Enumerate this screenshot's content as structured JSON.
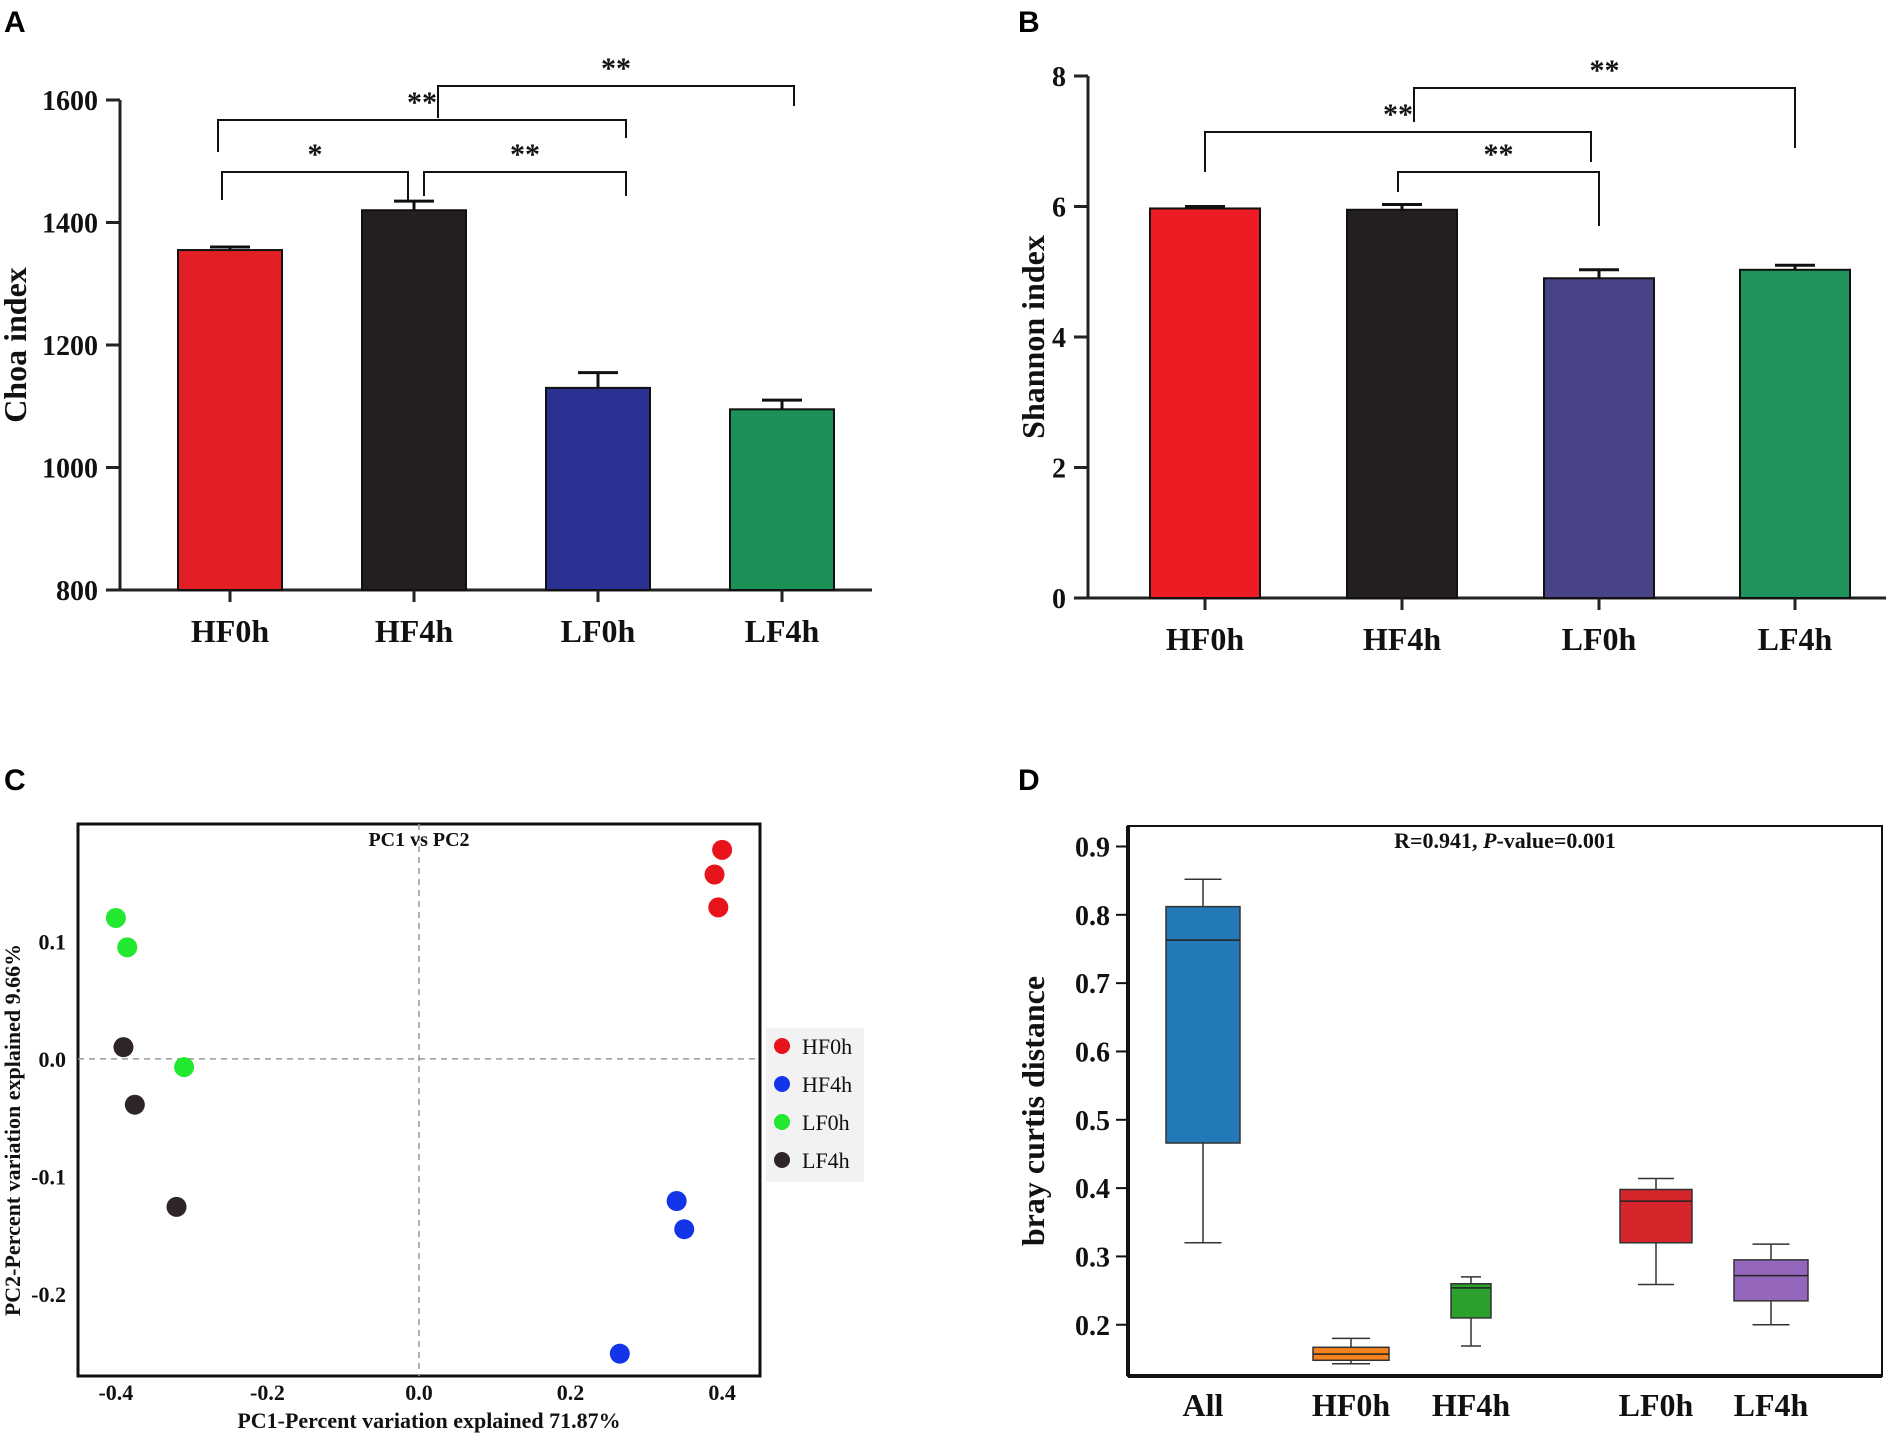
{
  "chart_data": [
    {
      "panel": "A",
      "type": "bar",
      "ylabel": "Choa index",
      "categories": [
        "HF0h",
        "HF4h",
        "LF0h",
        "LF4h"
      ],
      "values": [
        1355,
        1420,
        1130,
        1095
      ],
      "errors": [
        5,
        15,
        25,
        15
      ],
      "colors": [
        "#e31e24",
        "#231f20",
        "#2b3192",
        "#1b9158"
      ],
      "ylim": [
        800,
        1600
      ],
      "yticks": [
        800,
        1000,
        1200,
        1400,
        1600
      ],
      "significance": [
        {
          "from": 0,
          "to": 1,
          "label": "*"
        },
        {
          "from": 1,
          "to": 2,
          "label": "**"
        },
        {
          "from": 0,
          "to": 2,
          "label": "**"
        },
        {
          "from": 1,
          "to": 3,
          "label": "**"
        }
      ]
    },
    {
      "panel": "B",
      "type": "bar",
      "ylabel": "Shannon index",
      "categories": [
        "HF0h",
        "HF4h",
        "LF0h",
        "LF4h"
      ],
      "values": [
        5.97,
        5.95,
        4.9,
        5.03
      ],
      "errors": [
        0.03,
        0.08,
        0.13,
        0.07
      ],
      "colors": [
        "#ed1c24",
        "#231f20",
        "#474386",
        "#1f935b"
      ],
      "ylim": [
        0,
        8
      ],
      "yticks": [
        0,
        2,
        4,
        6,
        8
      ],
      "significance": [
        {
          "from": 1,
          "to": 2,
          "label": "**"
        },
        {
          "from": 0,
          "to": 2,
          "label": "**"
        },
        {
          "from": 1,
          "to": 3,
          "label": "**"
        }
      ]
    },
    {
      "panel": "C",
      "type": "scatter",
      "title": "PC1 vs PC2",
      "xlabel": "PC1-Percent variation explained 71.87%",
      "ylabel": "PC2-Percent variation explained 9.66%",
      "xlim": [
        -0.45,
        0.45
      ],
      "ylim": [
        -0.27,
        0.2
      ],
      "xticks": [
        -0.4,
        -0.2,
        0.0,
        0.2,
        0.4
      ],
      "xtick_labels": [
        "-0.4",
        "-0.2",
        "0.0",
        "0.2",
        "0.4"
      ],
      "yticks": [
        -0.2,
        -0.1,
        0.0,
        0.1
      ],
      "ytick_labels": [
        "-0.2",
        "-0.1",
        "0.0",
        "0.1"
      ],
      "series": [
        {
          "name": "HF0h",
          "color": "#e8141c",
          "points": [
            [
              0.4,
              0.178
            ],
            [
              0.39,
              0.157
            ],
            [
              0.395,
              0.129
            ]
          ]
        },
        {
          "name": "HF4h",
          "color": "#1434e8",
          "points": [
            [
              0.34,
              -0.121
            ],
            [
              0.35,
              -0.145
            ],
            [
              0.265,
              -0.251
            ]
          ]
        },
        {
          "name": "LF0h",
          "color": "#22e830",
          "points": [
            [
              -0.4,
              0.12
            ],
            [
              -0.385,
              0.095
            ],
            [
              -0.31,
              -0.007
            ]
          ]
        },
        {
          "name": "LF4h",
          "color": "#2e2526",
          "points": [
            [
              -0.39,
              0.01
            ],
            [
              -0.375,
              -0.039
            ],
            [
              -0.32,
              -0.126
            ]
          ]
        }
      ]
    },
    {
      "panel": "D",
      "type": "box",
      "ylabel": "bray curtis distance",
      "annotation": {
        "prefix": "R=0.941, ",
        "p_label": "P",
        "suffix": "-value=0.001"
      },
      "categories": [
        "All",
        "HF0h",
        "HF4h",
        "LF0h",
        "LF4h"
      ],
      "boxes": [
        {
          "min": 0.32,
          "q1": 0.466,
          "median": 0.763,
          "q3": 0.812,
          "max": 0.852
        },
        {
          "min": 0.143,
          "q1": 0.148,
          "median": 0.157,
          "q3": 0.167,
          "max": 0.18
        },
        {
          "min": 0.169,
          "q1": 0.21,
          "median": 0.254,
          "q3": 0.26,
          "max": 0.27
        },
        {
          "min": 0.259,
          "q1": 0.32,
          "median": 0.381,
          "q3": 0.398,
          "max": 0.414
        },
        {
          "min": 0.2,
          "q1": 0.235,
          "median": 0.272,
          "q3": 0.295,
          "max": 0.318
        }
      ],
      "colors": [
        "#2379b5",
        "#f6821f",
        "#2ca02c",
        "#d6262b",
        "#9467bd"
      ],
      "ylim": [
        0.125,
        0.93
      ],
      "yticks": [
        0.2,
        0.3,
        0.4,
        0.5,
        0.6,
        0.7,
        0.8,
        0.9
      ],
      "ytick_labels": [
        "0.2",
        "0.3",
        "0.4",
        "0.5",
        "0.6",
        "0.7",
        "0.8",
        "0.9"
      ]
    }
  ],
  "panels": [
    "A",
    "B",
    "C",
    "D"
  ]
}
